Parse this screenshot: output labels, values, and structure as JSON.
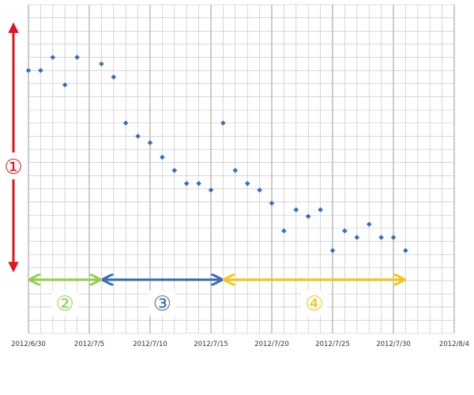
{
  "colors": {
    "grid": "#bfbfbf",
    "point": "#3b6fb6",
    "red": "#e0141e",
    "green": "#92d050",
    "blue": "#3a6fb0",
    "yellow": "#f5c518"
  },
  "chart_data": {
    "type": "scatter",
    "x_ticks": [
      "2012/6/30",
      "2012/7/5",
      "2012/7/10",
      "2012/7/15",
      "2012/7/20",
      "2012/7/25",
      "2012/7/30",
      "2012/8/4"
    ],
    "xlim": [
      "2012-06-30",
      "2012-08-04"
    ],
    "ylim": [
      0,
      25
    ],
    "grid": true,
    "points": [
      {
        "x": "2012-06-30",
        "y": 20
      },
      {
        "x": "2012-07-01",
        "y": 20
      },
      {
        "x": "2012-07-02",
        "y": 21
      },
      {
        "x": "2012-07-03",
        "y": 18.9
      },
      {
        "x": "2012-07-04",
        "y": 21
      },
      {
        "x": "2012-07-06",
        "y": 20.5
      },
      {
        "x": "2012-07-07",
        "y": 19.5
      },
      {
        "x": "2012-07-08",
        "y": 16
      },
      {
        "x": "2012-07-09",
        "y": 15
      },
      {
        "x": "2012-07-10",
        "y": 14.5
      },
      {
        "x": "2012-07-11",
        "y": 13.4
      },
      {
        "x": "2012-07-12",
        "y": 12.4
      },
      {
        "x": "2012-07-13",
        "y": 11.4
      },
      {
        "x": "2012-07-14",
        "y": 11.4
      },
      {
        "x": "2012-07-15",
        "y": 10.9
      },
      {
        "x": "2012-07-16",
        "y": 16
      },
      {
        "x": "2012-07-17",
        "y": 12.4
      },
      {
        "x": "2012-07-18",
        "y": 11.4
      },
      {
        "x": "2012-07-19",
        "y": 10.9
      },
      {
        "x": "2012-07-20",
        "y": 9.9
      },
      {
        "x": "2012-07-21",
        "y": 7.8
      },
      {
        "x": "2012-07-22",
        "y": 9.4
      },
      {
        "x": "2012-07-23",
        "y": 8.9
      },
      {
        "x": "2012-07-24",
        "y": 9.4
      },
      {
        "x": "2012-07-25",
        "y": 6.3
      },
      {
        "x": "2012-07-26",
        "y": 7.8
      },
      {
        "x": "2012-07-27",
        "y": 7.3
      },
      {
        "x": "2012-07-28",
        "y": 8.3
      },
      {
        "x": "2012-07-29",
        "y": 7.3
      },
      {
        "x": "2012-07-30",
        "y": 7.3
      },
      {
        "x": "2012-07-31",
        "y": 6.3
      }
    ],
    "annotations": [
      {
        "label": "①",
        "color": "red",
        "type": "vertical-arrow",
        "y_range": [
          4.8,
          23.5
        ]
      },
      {
        "label": "②",
        "color": "green",
        "type": "horizontal-arrow",
        "x_range": [
          "2012-06-30",
          "2012-07-06"
        ]
      },
      {
        "label": "③",
        "color": "blue",
        "type": "horizontal-arrow",
        "x_range": [
          "2012-07-06",
          "2012-07-16"
        ]
      },
      {
        "label": "④",
        "color": "yellow",
        "type": "horizontal-arrow",
        "x_range": [
          "2012-07-16",
          "2012-07-31"
        ]
      }
    ]
  }
}
